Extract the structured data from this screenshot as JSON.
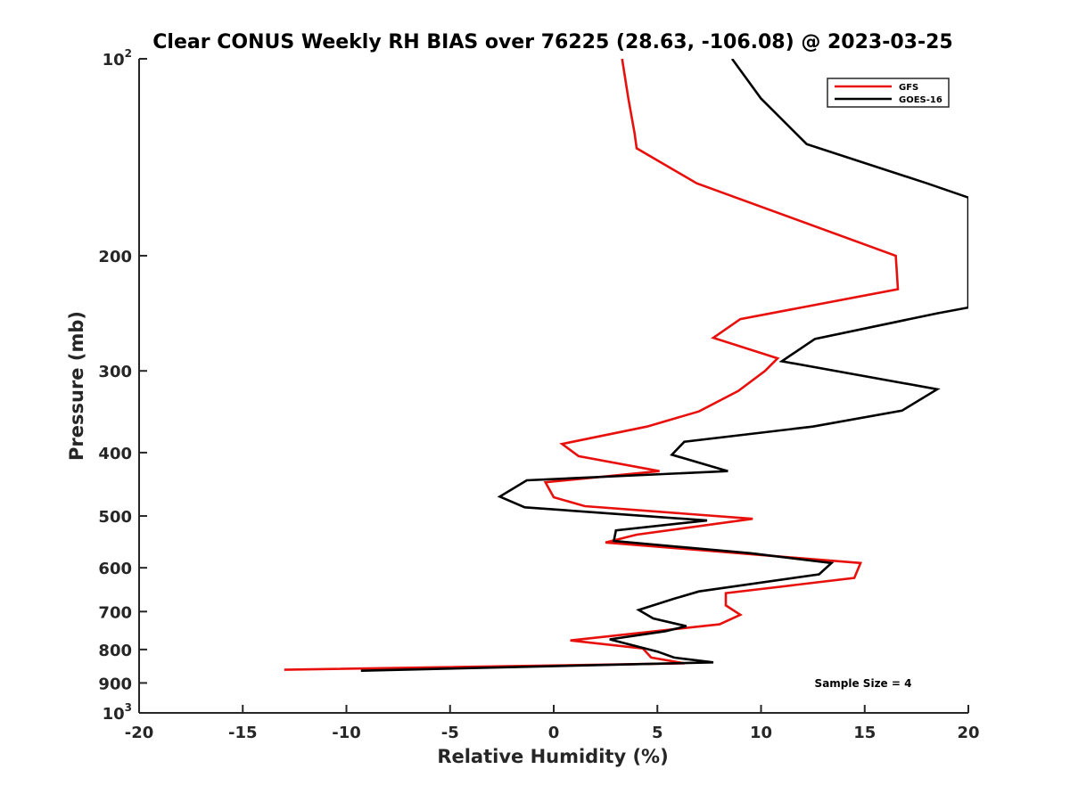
{
  "chart_data": {
    "type": "line",
    "title": "Clear CONUS Weekly RH BIAS over 76225 (28.63, -106.08) @ 2023-03-25",
    "xlabel": "Relative Humidity (%)",
    "ylabel": "Pressure (mb)",
    "xlim": [
      -20,
      20
    ],
    "ylim": [
      100,
      1000
    ],
    "yscale": "log",
    "y_reversed": true,
    "x_ticks": [
      -20,
      -15,
      -10,
      -5,
      0,
      5,
      10,
      15,
      20
    ],
    "y_ticks": [
      {
        "value": 100,
        "label": "10",
        "sup": "2"
      },
      {
        "value": 200,
        "label": "200"
      },
      {
        "value": 300,
        "label": "300"
      },
      {
        "value": 400,
        "label": "400"
      },
      {
        "value": 500,
        "label": "500"
      },
      {
        "value": 600,
        "label": "600"
      },
      {
        "value": 700,
        "label": "700"
      },
      {
        "value": 800,
        "label": "800"
      },
      {
        "value": 900,
        "label": "900"
      },
      {
        "value": 1000,
        "label": "10",
        "sup": "3"
      }
    ],
    "legend_location": "top-right",
    "annotation": "Sample Size = 4",
    "series": [
      {
        "name": "GFS",
        "color": "#e8100c",
        "points": [
          [
            3.3,
            100
          ],
          [
            3.6,
            115
          ],
          [
            3.9,
            130
          ],
          [
            4.0,
            137
          ],
          [
            6.9,
            155
          ],
          [
            16.5,
            200
          ],
          [
            16.6,
            225
          ],
          [
            9.0,
            250
          ],
          [
            7.7,
            267
          ],
          [
            10.8,
            287
          ],
          [
            10.2,
            300
          ],
          [
            8.9,
            322
          ],
          [
            7.0,
            346
          ],
          [
            4.5,
            365
          ],
          [
            0.4,
            388
          ],
          [
            1.2,
            405
          ],
          [
            5.1,
            427
          ],
          [
            -0.4,
            444
          ],
          [
            0.0,
            468
          ],
          [
            1.5,
            483
          ],
          [
            9.6,
            505
          ],
          [
            4.0,
            534
          ],
          [
            2.5,
            549
          ],
          [
            8.0,
            567
          ],
          [
            14.8,
            590
          ],
          [
            14.5,
            622
          ],
          [
            8.3,
            656
          ],
          [
            8.3,
            685
          ],
          [
            9.0,
            708
          ],
          [
            8.0,
            732
          ],
          [
            0.8,
            775
          ],
          [
            4.3,
            797
          ],
          [
            4.7,
            823
          ],
          [
            6.3,
            840
          ],
          [
            -13.0,
            859
          ]
        ]
      },
      {
        "name": "GOES-16",
        "color": "#000000",
        "points": [
          [
            8.6,
            100
          ],
          [
            10.0,
            115
          ],
          [
            12.2,
            135
          ],
          [
            18.0,
            155
          ],
          [
            20.0,
            163
          ],
          [
            20.0,
            240
          ],
          [
            18.5,
            245
          ],
          [
            12.6,
            268
          ],
          [
            11.0,
            290
          ],
          [
            18.5,
            320
          ],
          [
            16.8,
            345
          ],
          [
            12.5,
            365
          ],
          [
            6.3,
            385
          ],
          [
            5.7,
            403
          ],
          [
            8.4,
            427
          ],
          [
            -1.3,
            441
          ],
          [
            -2.6,
            467
          ],
          [
            -1.4,
            485
          ],
          [
            7.4,
            508
          ],
          [
            3.0,
            526
          ],
          [
            2.9,
            546
          ],
          [
            9.5,
            570
          ],
          [
            13.4,
            590
          ],
          [
            12.8,
            614
          ],
          [
            7.0,
            652
          ],
          [
            5.8,
            669
          ],
          [
            4.1,
            696
          ],
          [
            4.8,
            717
          ],
          [
            6.4,
            737
          ],
          [
            5.4,
            750
          ],
          [
            2.7,
            772
          ],
          [
            5.0,
            806
          ],
          [
            5.8,
            823
          ],
          [
            7.7,
            837
          ],
          [
            -9.3,
            862
          ]
        ]
      }
    ]
  }
}
